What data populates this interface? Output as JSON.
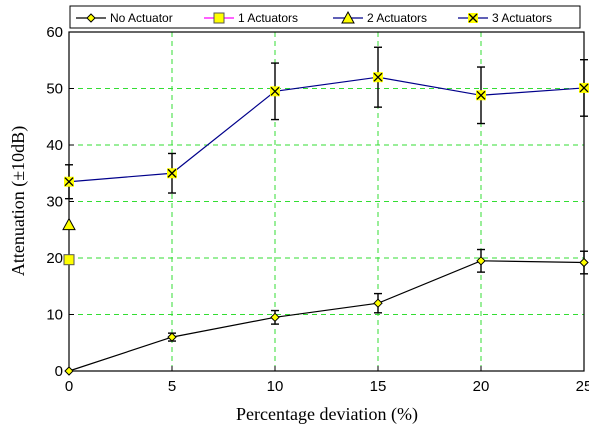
{
  "chart_data": {
    "type": "line",
    "xlabel": "Percentage deviation (%)",
    "ylabel": "Attenuation (±10dB)",
    "xlim": [
      0,
      25
    ],
    "ylim": [
      0,
      60
    ],
    "xticks": [
      "0",
      "5",
      "10",
      "15",
      "20",
      "25"
    ],
    "yticks": [
      "0",
      "10",
      "20",
      "30",
      "40",
      "50",
      "60"
    ],
    "grid": "dashed",
    "grid_color": "#33dd33",
    "legend_position": "top",
    "series": [
      {
        "name": "No Actuator",
        "marker": "diamond",
        "color": "#000000",
        "marker_fill": "#ffff00",
        "x": [
          0,
          5,
          10,
          15,
          20,
          25
        ],
        "y": [
          0,
          6,
          9.5,
          12,
          19.5,
          19.2
        ],
        "err": [
          0,
          0.7,
          1.2,
          1.7,
          2,
          2
        ]
      },
      {
        "name": "1 Actuators",
        "marker": "square",
        "color": "#ff00ff",
        "marker_fill": "#ffff00",
        "x": [
          0
        ],
        "y": [
          19.7
        ],
        "err": [
          0
        ]
      },
      {
        "name": "2 Actuators",
        "marker": "triangle",
        "color": "#00008b",
        "marker_fill": "#ffff00",
        "x": [
          0
        ],
        "y": [
          25.9
        ],
        "err": [
          0
        ]
      },
      {
        "name": "3 Actuators",
        "marker": "x",
        "color": "#00008b",
        "marker_fill": "#ffff00",
        "x": [
          0,
          5,
          10,
          15,
          20,
          25
        ],
        "y": [
          33.5,
          35,
          49.5,
          52,
          48.8,
          50.1
        ],
        "err": [
          3,
          3.5,
          5,
          5.3,
          5,
          5
        ]
      }
    ]
  }
}
